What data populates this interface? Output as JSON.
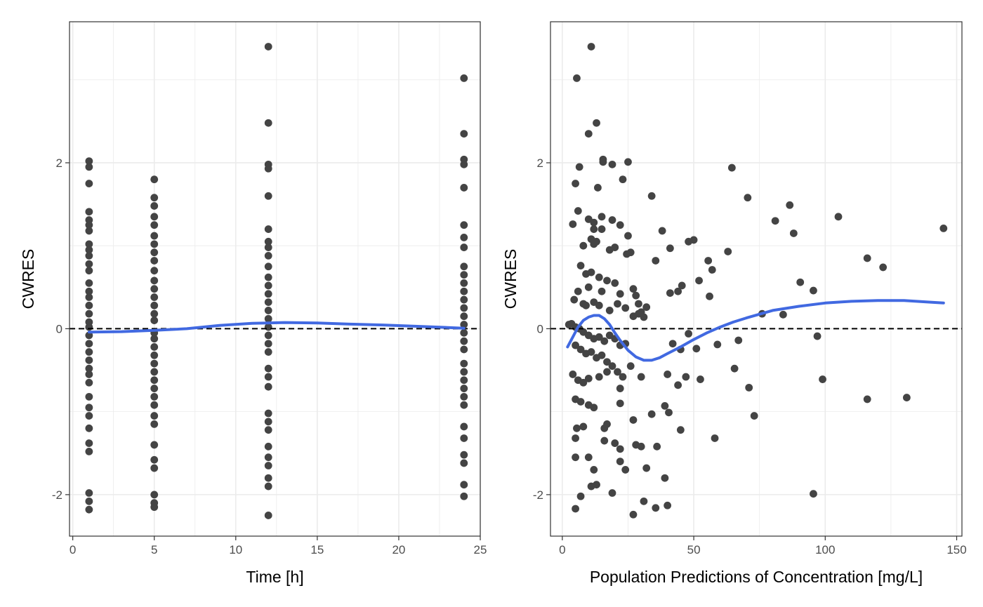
{
  "colors": {
    "points": "#444444",
    "smooth": "#4169E1",
    "reference": "#000000",
    "grid": "#ebebeb",
    "panel_border": "#333333"
  },
  "chart_data": [
    {
      "type": "scatter",
      "title": "",
      "xlabel": "Time [h]",
      "ylabel": "CWRES",
      "xlim": [
        -0.2,
        25.0
      ],
      "ylim": [
        -2.5,
        3.7
      ],
      "xticks": [
        0,
        5,
        10,
        15,
        20,
        25
      ],
      "yticks": [
        -2,
        0,
        2
      ],
      "xtick_labels": [
        "0",
        "5",
        "10",
        "15",
        "20",
        "25"
      ],
      "ytick_labels": [
        "-2",
        "0",
        "2"
      ],
      "grid": true,
      "reference_line": {
        "y": 0,
        "style": "dashed"
      },
      "points": [
        [
          1,
          2.02
        ],
        [
          1,
          1.95
        ],
        [
          1,
          1.75
        ],
        [
          1,
          1.41
        ],
        [
          1,
          1.31
        ],
        [
          1,
          1.25
        ],
        [
          1,
          1.18
        ],
        [
          1,
          1.02
        ],
        [
          1,
          0.95
        ],
        [
          1,
          0.88
        ],
        [
          1,
          0.78
        ],
        [
          1,
          0.7
        ],
        [
          1,
          0.55
        ],
        [
          1,
          0.45
        ],
        [
          1,
          0.38
        ],
        [
          1,
          0.28
        ],
        [
          1,
          0.18
        ],
        [
          1,
          0.08
        ],
        [
          1,
          0.02
        ],
        [
          1,
          -0.08
        ],
        [
          1,
          -0.18
        ],
        [
          1,
          -0.28
        ],
        [
          1,
          -0.38
        ],
        [
          1,
          -0.48
        ],
        [
          1,
          -0.55
        ],
        [
          1,
          -0.65
        ],
        [
          1,
          -0.82
        ],
        [
          1,
          -0.95
        ],
        [
          1,
          -1.05
        ],
        [
          1,
          -1.2
        ],
        [
          1,
          -1.38
        ],
        [
          1,
          -1.48
        ],
        [
          1,
          -1.98
        ],
        [
          1,
          -2.08
        ],
        [
          1,
          -2.18
        ],
        [
          5,
          1.8
        ],
        [
          5,
          1.58
        ],
        [
          5,
          1.48
        ],
        [
          5,
          1.35
        ],
        [
          5,
          1.25
        ],
        [
          5,
          1.12
        ],
        [
          5,
          1.02
        ],
        [
          5,
          0.92
        ],
        [
          5,
          0.82
        ],
        [
          5,
          0.7
        ],
        [
          5,
          0.58
        ],
        [
          5,
          0.48
        ],
        [
          5,
          0.38
        ],
        [
          5,
          0.28
        ],
        [
          5,
          0.18
        ],
        [
          5,
          0.1
        ],
        [
          5,
          -0.05
        ],
        [
          5,
          -0.12
        ],
        [
          5,
          -0.22
        ],
        [
          5,
          -0.32
        ],
        [
          5,
          -0.42
        ],
        [
          5,
          -0.52
        ],
        [
          5,
          -0.62
        ],
        [
          5,
          -0.72
        ],
        [
          5,
          -0.82
        ],
        [
          5,
          -0.92
        ],
        [
          5,
          -1.05
        ],
        [
          5,
          -1.15
        ],
        [
          5,
          -1.4
        ],
        [
          5,
          -1.58
        ],
        [
          5,
          -1.68
        ],
        [
          5,
          -2.0
        ],
        [
          5,
          -2.1
        ],
        [
          5,
          -2.15
        ],
        [
          12,
          3.4
        ],
        [
          12,
          2.48
        ],
        [
          12,
          1.98
        ],
        [
          12,
          1.93
        ],
        [
          12,
          1.6
        ],
        [
          12,
          1.2
        ],
        [
          12,
          1.05
        ],
        [
          12,
          0.98
        ],
        [
          12,
          0.88
        ],
        [
          12,
          0.75
        ],
        [
          12,
          0.62
        ],
        [
          12,
          0.52
        ],
        [
          12,
          0.42
        ],
        [
          12,
          0.32
        ],
        [
          12,
          0.22
        ],
        [
          12,
          0.12
        ],
        [
          12,
          0.02
        ],
        [
          12,
          -0.08
        ],
        [
          12,
          -0.18
        ],
        [
          12,
          -0.28
        ],
        [
          12,
          -0.48
        ],
        [
          12,
          -0.58
        ],
        [
          12,
          -0.7
        ],
        [
          12,
          -1.02
        ],
        [
          12,
          -1.12
        ],
        [
          12,
          -1.22
        ],
        [
          12,
          -1.42
        ],
        [
          12,
          -1.55
        ],
        [
          12,
          -1.65
        ],
        [
          12,
          -1.8
        ],
        [
          12,
          -1.9
        ],
        [
          12,
          -2.25
        ],
        [
          24,
          3.02
        ],
        [
          24,
          2.35
        ],
        [
          24,
          2.04
        ],
        [
          24,
          1.98
        ],
        [
          24,
          1.7
        ],
        [
          24,
          1.25
        ],
        [
          24,
          1.1
        ],
        [
          24,
          0.98
        ],
        [
          24,
          0.75
        ],
        [
          24,
          0.65
        ],
        [
          24,
          0.55
        ],
        [
          24,
          0.45
        ],
        [
          24,
          0.35
        ],
        [
          24,
          0.25
        ],
        [
          24,
          0.15
        ],
        [
          24,
          0.05
        ],
        [
          24,
          -0.05
        ],
        [
          24,
          -0.15
        ],
        [
          24,
          -0.25
        ],
        [
          24,
          -0.42
        ],
        [
          24,
          -0.52
        ],
        [
          24,
          -0.62
        ],
        [
          24,
          -0.72
        ],
        [
          24,
          -0.82
        ],
        [
          24,
          -0.92
        ],
        [
          24,
          -1.18
        ],
        [
          24,
          -1.32
        ],
        [
          24,
          -1.52
        ],
        [
          24,
          -1.62
        ],
        [
          24,
          -1.88
        ],
        [
          24,
          -2.02
        ]
      ],
      "smooth_line": [
        [
          1,
          -0.04
        ],
        [
          3,
          -0.035
        ],
        [
          5,
          -0.02
        ],
        [
          7,
          0.0
        ],
        [
          9,
          0.04
        ],
        [
          11,
          0.065
        ],
        [
          13,
          0.075
        ],
        [
          15,
          0.07
        ],
        [
          17,
          0.055
        ],
        [
          19,
          0.045
        ],
        [
          21,
          0.03
        ],
        [
          23,
          0.015
        ],
        [
          24,
          0.005
        ]
      ]
    },
    {
      "type": "scatter",
      "title": "",
      "xlabel": "Population Predictions of Concentration [mg/L]",
      "ylabel": "CWRES",
      "xlim": [
        -4.5,
        152
      ],
      "ylim": [
        -2.5,
        3.7
      ],
      "xticks": [
        0,
        50,
        100,
        150
      ],
      "yticks": [
        -2,
        0,
        2
      ],
      "xtick_labels": [
        "0",
        "50",
        "100",
        "150"
      ],
      "ytick_labels": [
        "-2",
        "0",
        "2"
      ],
      "grid": true,
      "reference_line": {
        "y": 0,
        "style": "dashed"
      },
      "points": [
        [
          11,
          3.4
        ],
        [
          5.5,
          3.02
        ],
        [
          13,
          2.48
        ],
        [
          10,
          2.35
        ],
        [
          15.5,
          2.04
        ],
        [
          15.5,
          2.01
        ],
        [
          25,
          2.01
        ],
        [
          19,
          1.98
        ],
        [
          6.5,
          1.95
        ],
        [
          23,
          1.8
        ],
        [
          5,
          1.75
        ],
        [
          13.5,
          1.7
        ],
        [
          34,
          1.6
        ],
        [
          70.5,
          1.58
        ],
        [
          6,
          1.42
        ],
        [
          15,
          1.35
        ],
        [
          10,
          1.32
        ],
        [
          12,
          1.28
        ],
        [
          4,
          1.26
        ],
        [
          19,
          1.31
        ],
        [
          22,
          1.25
        ],
        [
          38,
          1.18
        ],
        [
          15,
          1.2
        ],
        [
          12,
          1.2
        ],
        [
          25,
          1.12
        ],
        [
          11,
          1.08
        ],
        [
          13,
          1.05
        ],
        [
          12,
          1.02
        ],
        [
          8,
          1.0
        ],
        [
          20,
          0.98
        ],
        [
          41,
          0.97
        ],
        [
          48,
          1.05
        ],
        [
          50,
          1.07
        ],
        [
          64.5,
          1.94
        ],
        [
          81,
          1.3
        ],
        [
          86.5,
          1.49
        ],
        [
          88,
          1.15
        ],
        [
          105,
          1.35
        ],
        [
          116,
          0.85
        ],
        [
          122,
          0.74
        ],
        [
          145,
          1.21
        ],
        [
          18,
          0.95
        ],
        [
          26,
          0.92
        ],
        [
          24.5,
          0.9
        ],
        [
          7,
          0.76
        ],
        [
          35.5,
          0.82
        ],
        [
          55.5,
          0.82
        ],
        [
          57,
          0.71
        ],
        [
          63,
          0.93
        ],
        [
          11,
          0.68
        ],
        [
          9,
          0.66
        ],
        [
          14,
          0.62
        ],
        [
          17,
          0.58
        ],
        [
          20,
          0.55
        ],
        [
          10,
          0.5
        ],
        [
          15,
          0.45
        ],
        [
          22,
          0.42
        ],
        [
          27,
          0.48
        ],
        [
          28,
          0.4
        ],
        [
          6,
          0.45
        ],
        [
          4.5,
          0.35
        ],
        [
          8,
          0.3
        ],
        [
          9,
          0.28
        ],
        [
          12,
          0.32
        ],
        [
          14,
          0.28
        ],
        [
          18,
          0.22
        ],
        [
          21,
          0.3
        ],
        [
          24,
          0.25
        ],
        [
          29,
          0.3
        ],
        [
          30,
          0.2
        ],
        [
          32,
          0.26
        ],
        [
          41,
          0.43
        ],
        [
          44,
          0.45
        ],
        [
          45.5,
          0.52
        ],
        [
          52,
          0.58
        ],
        [
          56,
          0.39
        ],
        [
          90.5,
          0.56
        ],
        [
          95.5,
          0.46
        ],
        [
          2.5,
          0.05
        ],
        [
          3.5,
          0.06
        ],
        [
          5,
          0.02
        ],
        [
          6.5,
          0.0
        ],
        [
          8,
          -0.04
        ],
        [
          10,
          -0.08
        ],
        [
          12,
          -0.12
        ],
        [
          14,
          -0.1
        ],
        [
          16,
          -0.15
        ],
        [
          18,
          -0.08
        ],
        [
          20,
          -0.12
        ],
        [
          22,
          -0.2
        ],
        [
          24,
          -0.18
        ],
        [
          27,
          0.15
        ],
        [
          29,
          0.18
        ],
        [
          31,
          0.14
        ],
        [
          5,
          -0.2
        ],
        [
          7,
          -0.25
        ],
        [
          9,
          -0.3
        ],
        [
          11,
          -0.28
        ],
        [
          13,
          -0.35
        ],
        [
          15,
          -0.32
        ],
        [
          17,
          -0.4
        ],
        [
          19,
          -0.45
        ],
        [
          21,
          -0.52
        ],
        [
          23,
          -0.58
        ],
        [
          26,
          -0.45
        ],
        [
          42,
          -0.18
        ],
        [
          45,
          -0.25
        ],
        [
          48,
          -0.06
        ],
        [
          51,
          -0.24
        ],
        [
          59,
          -0.19
        ],
        [
          67,
          -0.14
        ],
        [
          76,
          0.18
        ],
        [
          84,
          0.17
        ],
        [
          97,
          -0.09
        ],
        [
          4,
          -0.55
        ],
        [
          6,
          -0.62
        ],
        [
          8,
          -0.65
        ],
        [
          10,
          -0.6
        ],
        [
          14,
          -0.58
        ],
        [
          17,
          -0.52
        ],
        [
          22,
          -0.72
        ],
        [
          30,
          -0.58
        ],
        [
          40,
          -0.55
        ],
        [
          44,
          -0.68
        ],
        [
          47,
          -0.58
        ],
        [
          52.5,
          -0.61
        ],
        [
          65.5,
          -0.48
        ],
        [
          71,
          -0.71
        ],
        [
          99,
          -0.61
        ],
        [
          5,
          -0.85
        ],
        [
          7,
          -0.88
        ],
        [
          10,
          -0.92
        ],
        [
          12,
          -0.95
        ],
        [
          22,
          -0.9
        ],
        [
          39,
          -0.93
        ],
        [
          40.5,
          -1.01
        ],
        [
          34,
          -1.03
        ],
        [
          27,
          -1.1
        ],
        [
          17,
          -1.15
        ],
        [
          5.5,
          -1.2
        ],
        [
          8,
          -1.18
        ],
        [
          16,
          -1.2
        ],
        [
          45,
          -1.22
        ],
        [
          58,
          -1.32
        ],
        [
          73,
          -1.05
        ],
        [
          116,
          -0.85
        ],
        [
          131,
          -0.83
        ],
        [
          5,
          -1.32
        ],
        [
          16,
          -1.35
        ],
        [
          20,
          -1.38
        ],
        [
          22,
          -1.45
        ],
        [
          28,
          -1.4
        ],
        [
          30,
          -1.42
        ],
        [
          36,
          -1.42
        ],
        [
          5,
          -1.55
        ],
        [
          10,
          -1.55
        ],
        [
          22,
          -1.6
        ],
        [
          24,
          -1.7
        ],
        [
          32,
          -1.68
        ],
        [
          12,
          -1.7
        ],
        [
          39,
          -1.8
        ],
        [
          11,
          -1.9
        ],
        [
          13,
          -1.88
        ],
        [
          19,
          -1.98
        ],
        [
          95.5,
          -1.99
        ],
        [
          7,
          -2.02
        ],
        [
          31,
          -2.08
        ],
        [
          40,
          -2.13
        ],
        [
          35.5,
          -2.16
        ],
        [
          5,
          -2.17
        ],
        [
          27,
          -2.24
        ]
      ],
      "smooth_line": [
        [
          2,
          -0.22
        ],
        [
          4,
          -0.1
        ],
        [
          6,
          0.02
        ],
        [
          8,
          0.1
        ],
        [
          10,
          0.14
        ],
        [
          12,
          0.16
        ],
        [
          14,
          0.16
        ],
        [
          16,
          0.12
        ],
        [
          18,
          0.05
        ],
        [
          20,
          -0.05
        ],
        [
          22,
          -0.14
        ],
        [
          25,
          -0.26
        ],
        [
          28,
          -0.34
        ],
        [
          31,
          -0.38
        ],
        [
          34,
          -0.38
        ],
        [
          37,
          -0.35
        ],
        [
          40,
          -0.3
        ],
        [
          45,
          -0.22
        ],
        [
          50,
          -0.13
        ],
        [
          55,
          -0.05
        ],
        [
          60,
          0.02
        ],
        [
          65,
          0.08
        ],
        [
          70,
          0.13
        ],
        [
          80,
          0.22
        ],
        [
          90,
          0.27
        ],
        [
          100,
          0.31
        ],
        [
          110,
          0.33
        ],
        [
          120,
          0.34
        ],
        [
          130,
          0.34
        ],
        [
          140,
          0.32
        ],
        [
          145,
          0.31
        ]
      ]
    }
  ]
}
